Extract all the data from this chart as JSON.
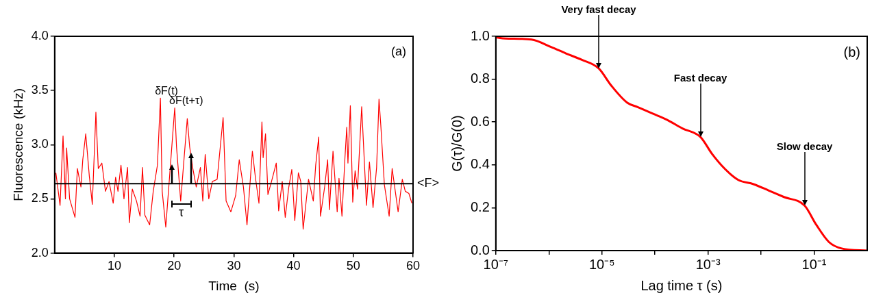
{
  "chart_data": [
    {
      "type": "line",
      "xlabel": "Time  (s)",
      "ylabel": "Fluorescence (kHz)",
      "xlim": [
        0,
        60
      ],
      "xticks": [
        10,
        20,
        30,
        40,
        50,
        60
      ],
      "ylim": [
        2,
        4
      ],
      "yticks": [
        {
          "value": 2,
          "label": "2.0"
        },
        {
          "value": 2.5,
          "label": "2.5"
        },
        {
          "value": 3,
          "label": "3.0"
        },
        {
          "value": 3.5,
          "label": "3.5"
        },
        {
          "value": 4,
          "label": "4.0"
        }
      ],
      "grid": false,
      "legend": false,
      "marker": "none",
      "annotations": [
        "(a)",
        {
          "text": "δF(t)",
          "x": 17.7,
          "y": 3.43
        },
        {
          "text": "δF(t+τ)",
          "x": 20.1,
          "y": 3.34
        },
        {
          "text": "τ",
          "x": 21.2,
          "y": 2.45
        }
      ],
      "ref_lines": [
        {
          "axis": "y",
          "value": 2.64,
          "label": "<F>",
          "color": "#000000"
        }
      ],
      "series": [
        {
          "color": "#ff0000",
          "x": [
            0.2,
            0.9,
            1.4,
            1.8,
            2.0,
            2.5,
            3.4,
            3.8,
            4.4,
            4.7,
            5.2,
            5.8,
            6.3,
            6.9,
            7.3,
            7.9,
            8.5,
            9.1,
            9.8,
            10.2,
            10.6,
            11.1,
            11.6,
            12.2,
            12.5,
            13.0,
            13.7,
            14.3,
            14.7,
            15.1,
            15.9,
            16.5,
            17.2,
            17.7,
            18.0,
            18.6,
            19.2,
            20.1,
            20.4,
            21.1,
            21.6,
            22.2,
            22.6,
            23.1,
            23.7,
            24.4,
            24.8,
            25.2,
            25.8,
            26.4,
            27.2,
            28.2,
            28.7,
            29.5,
            30.3,
            30.9,
            31.6,
            32.2,
            33.1,
            33.6,
            34.2,
            34.7,
            34.9,
            35.3,
            35.7,
            36.3,
            37.1,
            37.5,
            38.1,
            38.6,
            39.2,
            39.7,
            40.2,
            40.8,
            41.2,
            41.6,
            42.5,
            43.3,
            43.7,
            44.2,
            44.5,
            45.2,
            45.7,
            46.0,
            46.6,
            47.3,
            47.6,
            48.1,
            48.6,
            48.9,
            49.1,
            49.5,
            49.9,
            50.3,
            50.7,
            51.4,
            52.2,
            52.7,
            53.3,
            53.9,
            54.3,
            54.6,
            55.2,
            56.0,
            56.5,
            57.5,
            58.2,
            58.7,
            59.3,
            59.8
          ],
          "values": [
            2.74,
            2.44,
            3.08,
            2.5,
            2.97,
            2.5,
            2.33,
            2.78,
            2.61,
            2.86,
            3.1,
            2.71,
            2.45,
            3.3,
            2.78,
            2.83,
            2.57,
            2.66,
            2.46,
            2.7,
            2.57,
            2.81,
            2.5,
            2.79,
            2.28,
            2.59,
            2.48,
            2.34,
            2.79,
            2.35,
            2.26,
            2.57,
            2.81,
            3.43,
            2.57,
            2.24,
            2.68,
            3.34,
            2.98,
            2.48,
            2.83,
            3.24,
            2.98,
            2.79,
            2.61,
            2.79,
            2.48,
            2.91,
            2.5,
            2.66,
            2.68,
            3.25,
            2.48,
            2.38,
            2.53,
            2.86,
            2.61,
            2.26,
            2.94,
            2.7,
            2.46,
            3.21,
            2.88,
            3.1,
            2.54,
            2.66,
            2.83,
            2.39,
            2.66,
            2.33,
            2.61,
            2.77,
            2.3,
            2.74,
            2.66,
            2.22,
            2.68,
            2.48,
            2.81,
            3.07,
            2.34,
            2.61,
            2.86,
            2.4,
            2.94,
            2.38,
            2.69,
            2.34,
            2.88,
            3.16,
            2.83,
            3.36,
            2.47,
            2.76,
            2.59,
            3.35,
            2.44,
            2.84,
            2.42,
            2.79,
            3.42,
            3.18,
            2.63,
            2.34,
            2.78,
            2.38,
            2.68,
            2.57,
            2.55,
            2.46
          ]
        }
      ]
    },
    {
      "type": "line",
      "xlabel": "Lag time τ (s)",
      "ylabel": "G(τ)/G(0)",
      "log": "x",
      "xlim": [
        1e-07,
        1
      ],
      "xticks": [
        {
          "value": 1e-07,
          "label": "10⁻⁷"
        },
        {
          "value": 1e-06,
          "label": null
        },
        {
          "value": 1e-05,
          "label": "10⁻⁵"
        },
        {
          "value": 0.0001,
          "label": null
        },
        {
          "value": 0.001,
          "label": "10⁻³"
        },
        {
          "value": 0.01,
          "label": null
        },
        {
          "value": 0.1,
          "label": "10⁻¹"
        }
      ],
      "ylim": [
        0,
        1
      ],
      "yticks": [
        {
          "value": 0,
          "label": "0.0"
        },
        0.2,
        0.4,
        0.6,
        0.8,
        {
          "value": 1,
          "label": "1.0"
        }
      ],
      "grid": false,
      "legend": false,
      "marker": "none",
      "annotations": [
        "(b)",
        {
          "text": "Very fast decay",
          "x": 8.7e-06,
          "y": 0.85
        },
        {
          "text": "Fast decay",
          "x": 0.00072,
          "y": 0.53
        },
        {
          "text": "Slow decay",
          "x": 0.066,
          "y": 0.21
        }
      ],
      "series": [
        {
          "color": "#ff0000",
          "x": [
            1e-07,
            1.5e-07,
            4.7e-07,
            1.1e-06,
            2.1e-06,
            4.2e-06,
            8.7e-06,
            1.5e-05,
            3e-05,
            4.7e-05,
            8.9e-05,
            0.00017,
            0.00033,
            0.00072,
            0.0012,
            0.0021,
            0.0037,
            0.0072,
            0.014,
            0.027,
            0.066,
            0.11,
            0.19,
            0.33,
            1
          ],
          "values": [
            0.995,
            0.99,
            0.985,
            0.95,
            0.92,
            0.89,
            0.85,
            0.77,
            0.69,
            0.67,
            0.64,
            0.61,
            0.57,
            0.53,
            0.45,
            0.38,
            0.33,
            0.31,
            0.28,
            0.25,
            0.21,
            0.12,
            0.04,
            0.01,
            0
          ]
        }
      ]
    }
  ]
}
